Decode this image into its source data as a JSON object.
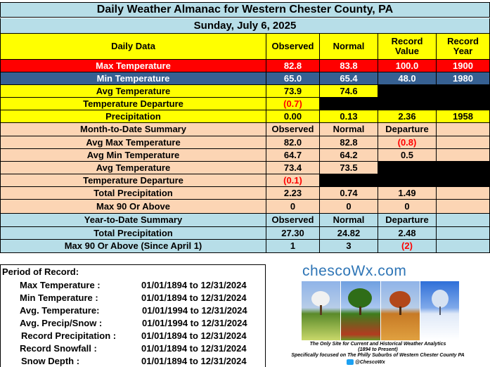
{
  "title": "Daily Weather Almanac for Western Chester County, PA",
  "date": "Sunday, July 6, 2025",
  "daily": {
    "headers": [
      "Daily Data",
      "Observed",
      "Normal",
      "Record\nValue",
      "Record\nYear"
    ],
    "rows": [
      {
        "label": "Max Temperature",
        "observed": "82.8",
        "normal": "83.8",
        "record_value": "100.0",
        "record_year": "1900"
      },
      {
        "label": "Min Temperature",
        "observed": "65.0",
        "normal": "65.4",
        "record_value": "48.0",
        "record_year": "1980"
      },
      {
        "label": "Avg Temperature",
        "observed": "73.9",
        "normal": "74.6",
        "record_value": "",
        "record_year": ""
      },
      {
        "label": "Temperature Departure",
        "observed": "(0.7)",
        "normal": "",
        "record_value": "",
        "record_year": ""
      },
      {
        "label": "Precipitation",
        "observed": "0.00",
        "normal": "0.13",
        "record_value": "2.36",
        "record_year": "1958"
      }
    ]
  },
  "month": {
    "headers": [
      "Month-to-Date Summary",
      "Observed",
      "Normal",
      "Departure"
    ],
    "rows": [
      {
        "label": "Avg Max Temperature",
        "observed": "82.0",
        "normal": "82.8",
        "departure": "(0.8)"
      },
      {
        "label": "Avg Min Temperature",
        "observed": "64.7",
        "normal": "64.2",
        "departure": "0.5"
      },
      {
        "label": "Avg Temperature",
        "observed": "73.4",
        "normal": "73.5",
        "departure": ""
      },
      {
        "label": "Temperature Departure",
        "observed": "(0.1)",
        "normal": "",
        "departure": ""
      },
      {
        "label": "Total Precipitation",
        "observed": "2.23",
        "normal": "0.74",
        "departure": "1.49"
      },
      {
        "label": "Max 90 Or Above",
        "observed": "0",
        "normal": "0",
        "departure": "0"
      }
    ]
  },
  "year": {
    "headers": [
      "Year-to-Date Summary",
      "Observed",
      "Normal",
      "Departure"
    ],
    "rows": [
      {
        "label": "Total Precipitation",
        "observed": "27.30",
        "normal": "24.82",
        "departure": "2.48"
      },
      {
        "label": "Max 90 Or Above (Since April 1)",
        "observed": "1",
        "normal": "3",
        "departure": "(2)"
      }
    ]
  },
  "period": {
    "heading": "Period of Record:",
    "items": [
      {
        "label": "Max Temperature :",
        "range": "01/01/1894 to 12/31/2024"
      },
      {
        "label": "Min Temperature :",
        "range": "01/01/1894 to 12/31/2024"
      },
      {
        "label": "Avg. Temperature:",
        "range": "01/01/1994 to 12/31/2024"
      },
      {
        "label": "Avg. Precip/Snow :",
        "range": "01/01/1994 to 12/31/2024"
      },
      {
        "label": "Record Precipitation :",
        "range": "01/01/1894 to 12/31/2024"
      },
      {
        "label": "Record Snowfall :",
        "range": "01/01/1894 to 12/31/2024"
      },
      {
        "label": "Snow Depth :",
        "range": "01/01/1894 to 12/31/2024"
      }
    ]
  },
  "logo": {
    "brand": "chescoWx.com",
    "tagline1": "The Only Site for Current and Historical Weather Analytics",
    "tagline2": "(1894 to Present)",
    "tagline3": "Specifically focused on The Philly Suburbs of Western Chester County PA",
    "twitter": "@ChescoWx"
  }
}
